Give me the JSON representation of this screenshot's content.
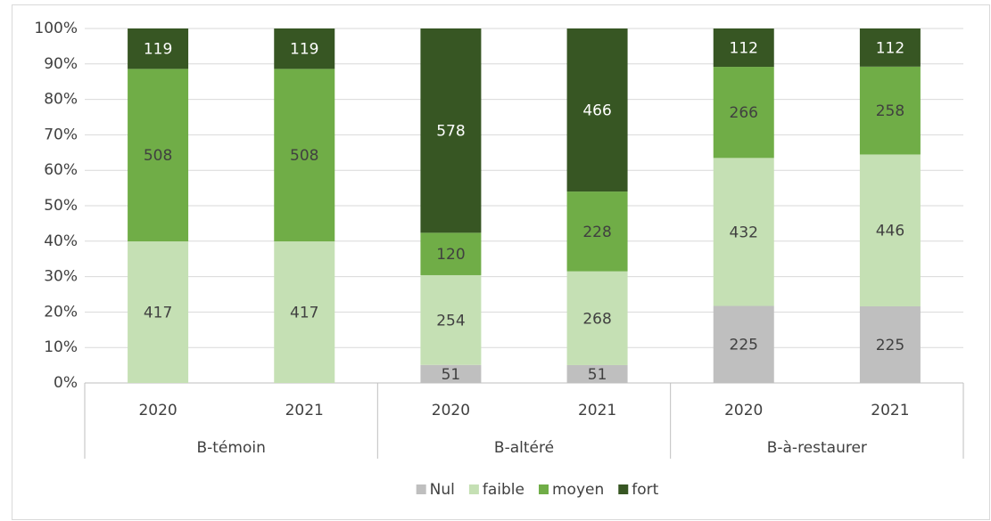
{
  "chart_data": {
    "type": "bar",
    "stacking": "percent",
    "groups": [
      {
        "name": "B-témoin",
        "categories": [
          "2020",
          "2021"
        ]
      },
      {
        "name": "B-altéré",
        "categories": [
          "2020",
          "2021"
        ]
      },
      {
        "name": "B-à-restaurer",
        "categories": [
          "2020",
          "2021"
        ]
      }
    ],
    "series": [
      {
        "name": "Nul",
        "color": "#bfbfbf",
        "values": [
          null,
          null,
          51,
          51,
          225,
          225
        ]
      },
      {
        "name": "faible",
        "color": "#c5e0b4",
        "values": [
          417,
          417,
          254,
          268,
          432,
          446
        ]
      },
      {
        "name": "moyen",
        "color": "#70ad47",
        "values": [
          508,
          508,
          120,
          228,
          266,
          258
        ]
      },
      {
        "name": "fort",
        "color": "#375623",
        "values": [
          119,
          119,
          578,
          466,
          112,
          112
        ]
      }
    ],
    "ylim": [
      0,
      100
    ],
    "yticks": [
      {
        "value": 0,
        "label": "0%"
      },
      {
        "value": 10,
        "label": "10%"
      },
      {
        "value": 20,
        "label": "20%"
      },
      {
        "value": 30,
        "label": "30%"
      },
      {
        "value": 40,
        "label": "40%"
      },
      {
        "value": 50,
        "label": "50%"
      },
      {
        "value": 60,
        "label": "60%"
      },
      {
        "value": 70,
        "label": "70%"
      },
      {
        "value": 80,
        "label": "80%"
      },
      {
        "value": 90,
        "label": "90%"
      },
      {
        "value": 100,
        "label": "100%"
      }
    ],
    "grid": true,
    "legend": "bottom"
  }
}
